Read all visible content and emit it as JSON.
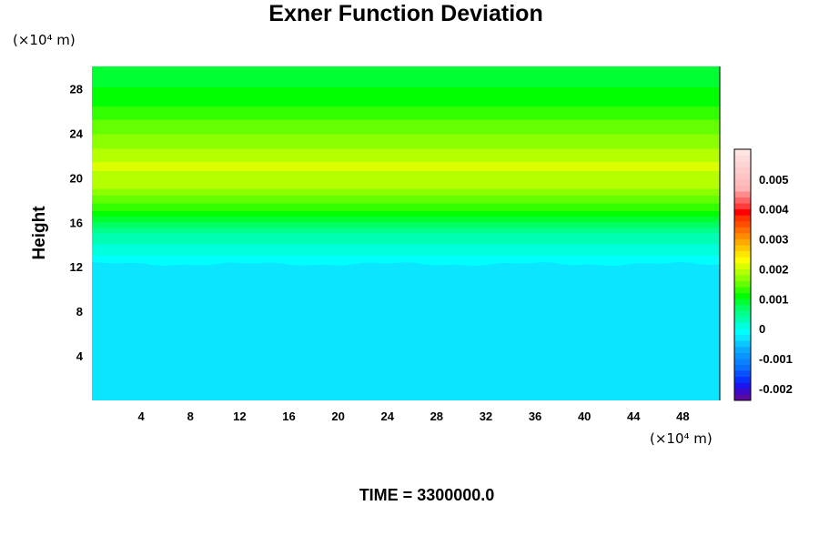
{
  "chart_data": {
    "type": "heatmap",
    "title": "Exner Function Deviation",
    "ylabel": "Height",
    "xlabel": "",
    "x_unit": "(×10⁴ m)",
    "y_unit": "(×10⁴ m)",
    "footer": "TIME = 3300000.0",
    "xlim": [
      0,
      51
    ],
    "ylim": [
      0,
      30
    ],
    "x_ticks": [
      {
        "value": 4,
        "label": "4"
      },
      {
        "value": 8,
        "label": "8"
      },
      {
        "value": 12,
        "label": "12"
      },
      {
        "value": 16,
        "label": "16"
      },
      {
        "value": 20,
        "label": "20"
      },
      {
        "value": 24,
        "label": "24"
      },
      {
        "value": 28,
        "label": "28"
      },
      {
        "value": 32,
        "label": "32"
      },
      {
        "value": 36,
        "label": "36"
      },
      {
        "value": 40,
        "label": "40"
      },
      {
        "value": 44,
        "label": "44"
      },
      {
        "value": 48,
        "label": "48"
      }
    ],
    "y_ticks": [
      {
        "value": 4,
        "label": "4"
      },
      {
        "value": 8,
        "label": "8"
      },
      {
        "value": 12,
        "label": "12"
      },
      {
        "value": 16,
        "label": "16"
      },
      {
        "value": 20,
        "label": "20"
      },
      {
        "value": 24,
        "label": "24"
      },
      {
        "value": 28,
        "label": "28"
      }
    ],
    "profile": [
      {
        "height": 0,
        "value": -0.0004
      },
      {
        "height": 10.3,
        "value": -0.0004
      },
      {
        "height": 10.8,
        "value": -0.00025
      },
      {
        "height": 12.2,
        "value": -0.0001
      },
      {
        "height": 13.0,
        "value": 0.0
      },
      {
        "height": 15.0,
        "value": 0.0004
      },
      {
        "height": 17.0,
        "value": 0.0012
      },
      {
        "height": 19.0,
        "value": 0.0018
      },
      {
        "height": 21.0,
        "value": 0.00205
      },
      {
        "height": 22.5,
        "value": 0.0018
      },
      {
        "height": 24.5,
        "value": 0.0015
      },
      {
        "height": 27.0,
        "value": 0.0011
      },
      {
        "height": 30.0,
        "value": 0.0008
      }
    ],
    "colorbar": {
      "min": -0.0024,
      "max": 0.006,
      "step": 0.0002,
      "ticks": [
        {
          "value": 0.005,
          "label": "0.005"
        },
        {
          "value": 0.004,
          "label": "0.004"
        },
        {
          "value": 0.003,
          "label": "0.003"
        },
        {
          "value": 0.002,
          "label": "0.002"
        },
        {
          "value": 0.001,
          "label": "0.001"
        },
        {
          "value": 0.0,
          "label": "0"
        },
        {
          "value": -0.001,
          "label": "-0.001"
        },
        {
          "value": -0.002,
          "label": "-0.002"
        }
      ],
      "colors": [
        "#5a0aa0",
        "#3c0ac8",
        "#1e14f0",
        "#0a32ff",
        "#0a50ff",
        "#0a6eff",
        "#0a82ff",
        "#0a96ff",
        "#0aaaff",
        "#0ac8ff",
        "#0ae6ff",
        "#00ffff",
        "#00ffdc",
        "#00ffb4",
        "#00ff8c",
        "#00ff64",
        "#00ff32",
        "#00ff00",
        "#32ff00",
        "#64ff00",
        "#8cff00",
        "#b4ff00",
        "#dcff00",
        "#ffff00",
        "#ffe600",
        "#ffc800",
        "#ffaa00",
        "#ff8c00",
        "#ff6e00",
        "#ff5000",
        "#ff3200",
        "#ff0000",
        "#ff3c3c",
        "#ff6464",
        "#ff8c8c",
        "#ffb4b4",
        "#ffbcbc",
        "#ffc4c4",
        "#ffcccc",
        "#ffd4d4",
        "#ffdcdc",
        "#ffe4e4"
      ]
    }
  }
}
